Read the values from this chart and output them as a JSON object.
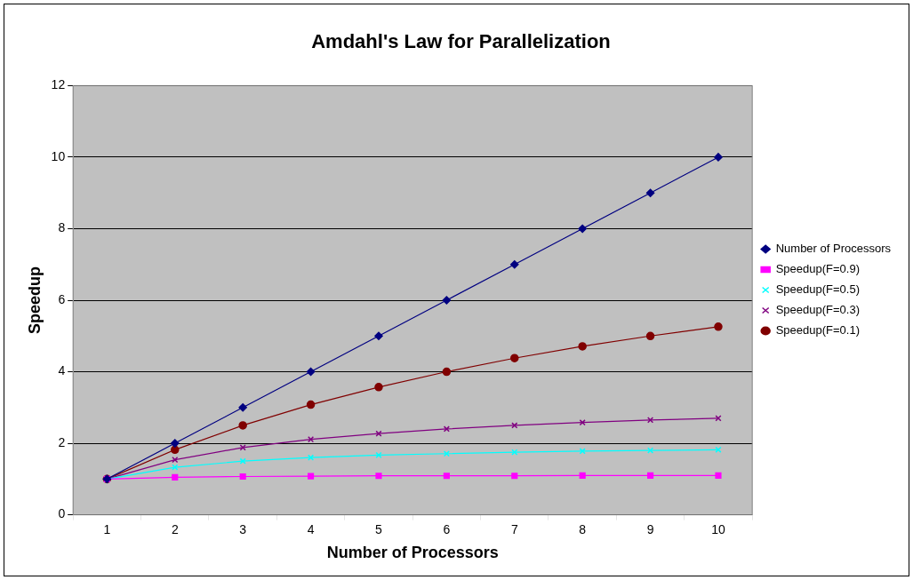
{
  "chart_data": {
    "type": "line",
    "title": "Amdahl's Law for Parallelization",
    "xlabel": "Number of Processors",
    "ylabel": "Speedup",
    "categories": [
      "1",
      "2",
      "3",
      "4",
      "5",
      "6",
      "7",
      "8",
      "9",
      "10"
    ],
    "series": [
      {
        "name": "Number of Processors",
        "color": "#000080",
        "marker": "diamond",
        "values": [
          1,
          2,
          3,
          4,
          5,
          6,
          7,
          8,
          9,
          10
        ]
      },
      {
        "name": "Speedup(F=0.9)",
        "color": "#ff00ff",
        "marker": "square",
        "values": [
          1,
          1.05,
          1.07,
          1.08,
          1.09,
          1.09,
          1.09,
          1.1,
          1.1,
          1.1
        ]
      },
      {
        "name": "Speedup(F=0.5)",
        "color": "#00ffff",
        "marker": "cross",
        "values": [
          1,
          1.33,
          1.5,
          1.6,
          1.67,
          1.71,
          1.75,
          1.78,
          1.8,
          1.82
        ]
      },
      {
        "name": "Speedup(F=0.3)",
        "color": "#800080",
        "marker": "cross",
        "values": [
          1,
          1.54,
          1.88,
          2.11,
          2.27,
          2.4,
          2.5,
          2.58,
          2.65,
          2.7
        ]
      },
      {
        "name": "Speedup(F=0.1)",
        "color": "#800000",
        "marker": "circle",
        "values": [
          1,
          1.82,
          2.5,
          3.08,
          3.57,
          4,
          4.38,
          4.71,
          5,
          5.26
        ]
      }
    ],
    "ylim": [
      0,
      12
    ],
    "yticks": [
      0,
      2,
      4,
      6,
      8,
      10,
      12
    ],
    "grid": "y",
    "legend": "right",
    "line_style": "solid"
  }
}
